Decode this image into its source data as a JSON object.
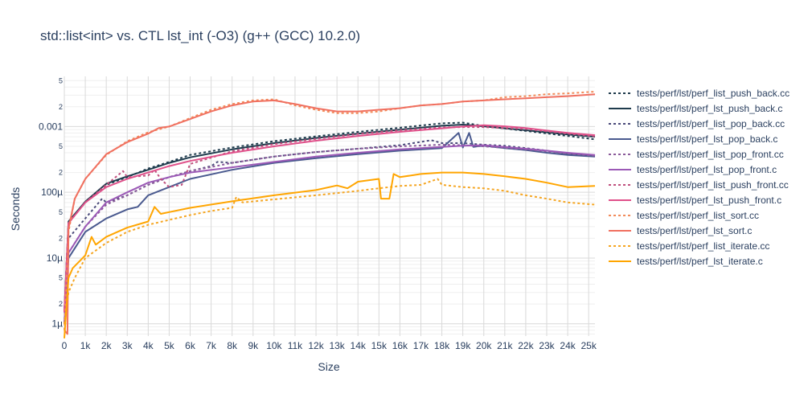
{
  "chart_data": {
    "type": "line",
    "title": "std::list<int> vs. CTL lst_int (-O3) (g++ (GCC) 10.2.0)",
    "xlabel": "Size",
    "ylabel": "Seconds",
    "yscale": "log",
    "xlim": [
      0,
      25300
    ],
    "ylim": [
      6.5e-07,
      0.0058
    ],
    "x_ticks": [
      0,
      1000,
      2000,
      3000,
      4000,
      5000,
      6000,
      7000,
      8000,
      9000,
      10000,
      11000,
      12000,
      13000,
      14000,
      15000,
      16000,
      17000,
      18000,
      19000,
      20000,
      21000,
      22000,
      23000,
      24000,
      25000
    ],
    "x_tick_labels": [
      "0",
      "1k",
      "2k",
      "3k",
      "4k",
      "5k",
      "6k",
      "7k",
      "8k",
      "9k",
      "10k",
      "11k",
      "12k",
      "13k",
      "14k",
      "15k",
      "16k",
      "17k",
      "18k",
      "19k",
      "20k",
      "21k",
      "22k",
      "23k",
      "24k",
      "25k"
    ],
    "y_major_ticks": [
      1e-06,
      1e-05,
      0.0001,
      0.001
    ],
    "y_major_labels": [
      "1µ",
      "10µ",
      "100µ",
      "0.001"
    ],
    "y_minor_ticks": [
      2e-06,
      5e-06,
      2e-05,
      5e-05,
      0.0002,
      0.0005,
      0.002,
      0.005
    ],
    "y_minor_labels": [
      "2",
      "5",
      "2",
      "5",
      "2",
      "5",
      "2",
      "5"
    ],
    "grid": true,
    "legend_position": "right",
    "series": [
      {
        "name": "tests/perf/lst/perf_list_push_back.cc",
        "color": "#1f3b4d",
        "dash": "dot",
        "x": [
          0,
          200,
          1000,
          2000,
          3000,
          4000,
          5000,
          6000,
          8000,
          10000,
          12000,
          14000,
          16000,
          18000,
          19000,
          20000,
          22000,
          24000,
          25300
        ],
        "y": [
          1.5e-06,
          3.5e-05,
          7e-05,
          0.00013,
          0.00017,
          0.00023,
          0.00029,
          0.00037,
          0.00048,
          0.0006,
          0.00071,
          0.00083,
          0.00096,
          0.00112,
          0.00115,
          0.00102,
          0.00086,
          0.00072,
          0.00064
        ]
      },
      {
        "name": "tests/perf/lst/perf_lst_push_back.c",
        "color": "#1f3b4d",
        "dash": "solid",
        "x": [
          0,
          200,
          1000,
          2000,
          3000,
          4000,
          5000,
          6000,
          8000,
          10000,
          12000,
          14000,
          16000,
          18000,
          19000,
          20000,
          22000,
          24000,
          25300
        ],
        "y": [
          1.5e-06,
          3.6e-05,
          7.2e-05,
          0.000135,
          0.000175,
          0.00022,
          0.00028,
          0.00034,
          0.00045,
          0.00056,
          0.00067,
          0.00078,
          0.0009,
          0.00103,
          0.00107,
          0.00101,
          0.00088,
          0.00076,
          0.0007
        ]
      },
      {
        "name": "tests/perf/lst/perf_list_pop_back.cc",
        "color": "#4a4a7a",
        "dash": "dot",
        "x": [
          0,
          200,
          1000,
          1800,
          2000,
          3000,
          4000,
          5000,
          6000,
          7000,
          7300,
          8000,
          10000,
          12000,
          14000,
          16000,
          17500,
          18000,
          19000,
          20000,
          21000,
          22000,
          23000,
          24000,
          25300
        ],
        "y": [
          1e-06,
          2e-05,
          4e-05,
          8e-05,
          7e-05,
          9e-05,
          0.00013,
          0.00017,
          0.00021,
          0.00025,
          0.00029,
          0.00028,
          0.00035,
          0.00041,
          0.00046,
          0.00052,
          0.00062,
          0.00056,
          0.00056,
          0.00053,
          0.00051,
          0.00047,
          0.00043,
          0.00039,
          0.00036
        ]
      },
      {
        "name": "tests/perf/lst/perf_lst_pop_back.c",
        "color": "#4a5a8f",
        "dash": "solid",
        "x": [
          0,
          200,
          1000,
          2000,
          3000,
          3500,
          4000,
          5000,
          6000,
          8000,
          10000,
          12000,
          14000,
          16000,
          18000,
          18800,
          19000,
          19300,
          19500,
          19700,
          20000,
          21000,
          22000,
          23000,
          24000,
          25300
        ],
        "y": [
          1e-06,
          1e-05,
          2.5e-05,
          4e-05,
          5.5e-05,
          6e-05,
          9e-05,
          0.00012,
          0.00016,
          0.00022,
          0.00028,
          0.00033,
          0.00038,
          0.00043,
          0.00047,
          0.0008,
          0.00048,
          0.0008,
          0.00049,
          0.0005,
          0.00051,
          0.00047,
          0.00044,
          0.0004,
          0.00037,
          0.00035
        ]
      },
      {
        "name": "tests/perf/lst/perf_list_pop_front.cc",
        "color": "#8a5a9a",
        "dash": "dot",
        "x": [
          0,
          200,
          1000,
          2000,
          3000,
          4000,
          5000,
          6000,
          8000,
          10000,
          12000,
          14000,
          16000,
          18000,
          19000,
          20000,
          22000,
          23000,
          24000,
          25300
        ],
        "y": [
          1e-06,
          1.2e-05,
          3e-05,
          6.5e-05,
          9e-05,
          0.00013,
          0.00017,
          0.00021,
          0.00028,
          0.00035,
          0.00041,
          0.00046,
          0.0005,
          0.00053,
          0.00052,
          0.0005,
          0.00045,
          0.00042,
          0.00039,
          0.00036
        ]
      },
      {
        "name": "tests/perf/lst/perf_lst_pop_front.c",
        "color": "#9b59b6",
        "dash": "solid",
        "x": [
          0,
          200,
          1000,
          2000,
          3000,
          4000,
          5000,
          6000,
          8000,
          10000,
          12000,
          14000,
          16000,
          18000,
          19000,
          20000,
          21000,
          22000,
          23000,
          24000,
          25300
        ],
        "y": [
          1e-06,
          1.2e-05,
          3e-05,
          7e-05,
          0.0001,
          0.00014,
          0.00017,
          0.0002,
          0.00024,
          0.00029,
          0.00035,
          0.0004,
          0.00045,
          0.00049,
          0.00051,
          0.00052,
          0.00049,
          0.00046,
          0.00043,
          0.0004,
          0.00037
        ]
      },
      {
        "name": "tests/perf/lst/perf_list_push_front.cc",
        "color": "#c0507e",
        "dash": "dot",
        "x": [
          0,
          200,
          1000,
          2000,
          2800,
          3000,
          4000,
          4300,
          4600,
          5000,
          5600,
          6000,
          8000,
          10000,
          12000,
          14000,
          16000,
          18000,
          19000,
          20000,
          22000,
          24000,
          25300
        ],
        "y": [
          1.5e-06,
          3.4e-05,
          7e-05,
          0.00013,
          0.00021,
          0.00017,
          0.00018,
          0.00022,
          0.00016,
          0.00012,
          0.00013,
          0.00027,
          0.00042,
          0.00054,
          0.00065,
          0.00077,
          0.00088,
          0.00097,
          0.00098,
          0.00098,
          0.00092,
          0.00078,
          0.00071
        ]
      },
      {
        "name": "tests/perf/lst/perf_lst_push_front.c",
        "color": "#e0508a",
        "dash": "solid",
        "x": [
          0,
          200,
          1000,
          2000,
          3000,
          4000,
          5000,
          6000,
          8000,
          10000,
          12000,
          14000,
          16000,
          18000,
          19000,
          20000,
          21000,
          22000,
          23000,
          24000,
          25300
        ],
        "y": [
          1.5e-06,
          3.4e-05,
          7e-05,
          0.00012,
          0.00016,
          0.0002,
          0.00025,
          0.0003,
          0.0004,
          0.0005,
          0.00061,
          0.00072,
          0.00083,
          0.00094,
          0.001,
          0.00105,
          0.00101,
          0.00095,
          0.00087,
          0.0008,
          0.00074
        ]
      },
      {
        "name": "tests/perf/lst/perf_list_sort.cc",
        "color": "#f28b5a",
        "dash": "dot",
        "x": [
          0,
          200,
          500,
          1000,
          2000,
          3000,
          4000,
          5000,
          6000,
          7000,
          8000,
          9000,
          10000,
          11000,
          12000,
          13000,
          14000,
          15000,
          16000,
          17000,
          18000,
          19000,
          20000,
          21000,
          22000,
          23000,
          24000,
          25300
        ],
        "y": [
          8e-07,
          2.5e-05,
          8e-05,
          0.00016,
          0.00037,
          0.0006,
          0.00082,
          0.001,
          0.00135,
          0.0018,
          0.0022,
          0.0025,
          0.0026,
          0.0021,
          0.0018,
          0.0016,
          0.0016,
          0.0017,
          0.0019,
          0.0021,
          0.0022,
          0.0024,
          0.0025,
          0.0028,
          0.0029,
          0.0031,
          0.0032,
          0.0034
        ]
      },
      {
        "name": "tests/perf/lst/perf_lst_sort.c",
        "color": "#f07060",
        "dash": "solid",
        "x": [
          0,
          150,
          200,
          500,
          1000,
          2000,
          3000,
          4000,
          4500,
          5000,
          6000,
          7000,
          8000,
          9000,
          10000,
          11000,
          12000,
          13000,
          14000,
          15000,
          16000,
          17000,
          18000,
          19000,
          20000,
          21000,
          22000,
          23000,
          24000,
          25300
        ],
        "y": [
          8e-07,
          7e-07,
          2.8e-05,
          8e-05,
          0.00016,
          0.00038,
          0.00058,
          0.00078,
          0.00095,
          0.001,
          0.0013,
          0.0017,
          0.0021,
          0.0024,
          0.0025,
          0.0022,
          0.0019,
          0.0017,
          0.0017,
          0.0018,
          0.0019,
          0.0021,
          0.0022,
          0.0024,
          0.0025,
          0.0026,
          0.0027,
          0.0028,
          0.0029,
          0.0031
        ]
      },
      {
        "name": "tests/perf/lst/perf_list_iterate.cc",
        "color": "#f5a623",
        "dash": "dot",
        "x": [
          0,
          200,
          500,
          1000,
          2000,
          3000,
          4000,
          5000,
          6000,
          7000,
          8000,
          8200,
          8500,
          10000,
          12000,
          14000,
          15000,
          16000,
          17000,
          17800,
          18000,
          19000,
          20000,
          21000,
          22000,
          23000,
          24000,
          25300
        ],
        "y": [
          1e-06,
          3e-06,
          5e-06,
          1e-05,
          1.7e-05,
          2.5e-05,
          3.2e-05,
          3.8e-05,
          4.5e-05,
          5.2e-05,
          5.8e-05,
          8.5e-05,
          7e-05,
          7.8e-05,
          9e-05,
          0.000105,
          0.000115,
          0.000125,
          0.00013,
          0.00016,
          0.00013,
          0.00012,
          0.000115,
          0.000105,
          9e-05,
          8e-05,
          7e-05,
          6.5e-05
        ]
      },
      {
        "name": "tests/perf/lst/perf_lst_iterate.c",
        "color": "#ffa500",
        "dash": "solid",
        "x": [
          0,
          200,
          400,
          1000,
          1300,
          1500,
          2000,
          3000,
          4000,
          4300,
          4600,
          5000,
          6000,
          8000,
          10000,
          12000,
          13000,
          13500,
          14000,
          15000,
          15100,
          15500,
          15700,
          16000,
          17000,
          18000,
          19000,
          20000,
          21000,
          22000,
          23000,
          24000,
          25300
        ],
        "y": [
          6e-07,
          5e-06,
          7e-06,
          1.1e-05,
          2.1e-05,
          1.6e-05,
          2.1e-05,
          2.9e-05,
          3.6e-05,
          6e-05,
          4.7e-05,
          5e-05,
          5.8e-05,
          7.3e-05,
          9e-05,
          0.000108,
          0.000127,
          0.000115,
          0.000145,
          0.00016,
          8e-05,
          8e-05,
          0.00019,
          0.00017,
          0.00019,
          0.0002,
          0.0002,
          0.00019,
          0.000175,
          0.00016,
          0.00014,
          0.00012,
          0.000125
        ]
      }
    ]
  }
}
